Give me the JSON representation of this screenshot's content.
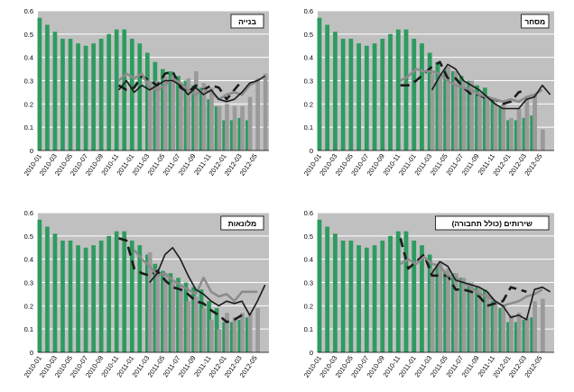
{
  "months": [
    "2010-01",
    "2010-02",
    "2010-03",
    "2010-04",
    "2010-05",
    "2010-06",
    "2010-07",
    "2010-08",
    "2010-09",
    "2010-10",
    "2010-11",
    "2010-12",
    "2011-01",
    "2011-02",
    "2011-03",
    "2011-04",
    "2011-05",
    "2011-06",
    "2011-07",
    "2011-08",
    "2011-09",
    "2011-10",
    "2011-11",
    "2011-12",
    "2012-01",
    "2012-02",
    "2012-03",
    "2012-04",
    "2012-05",
    "2012-06"
  ],
  "colors": {
    "green_bar": "#2e9b5f",
    "gray_bar": "#9a9a9a",
    "plot_bg": "#c0c0c0",
    "dark_line": "#1a1a1a",
    "gray_line": "#8c8c8c"
  },
  "chart_data": [
    {
      "type": "bar",
      "title": "בנייה",
      "position": "top-left",
      "x": [
        "2010-01",
        "2010-02",
        "2010-03",
        "2010-04",
        "2010-05",
        "2010-06",
        "2010-07",
        "2010-08",
        "2010-09",
        "2010-10",
        "2010-11",
        "2010-12",
        "2011-01",
        "2011-02",
        "2011-03",
        "2011-04",
        "2011-05",
        "2011-06",
        "2011-07",
        "2011-08",
        "2011-09",
        "2011-10",
        "2011-11",
        "2011-12",
        "2012-01",
        "2012-02",
        "2012-03",
        "2012-04",
        "2012-05",
        "2012-06"
      ],
      "x_tick_labels": [
        "2010-01",
        "2010-03",
        "2010-05",
        "2010-07",
        "2010-09",
        "2010-11",
        "2011-01",
        "2011-03",
        "2011-05",
        "2011-07",
        "2011-09",
        "2011-11",
        "2012-01",
        "2012-03",
        "2012-05"
      ],
      "ylim": [
        0,
        0.6
      ],
      "y_ticks": [
        0,
        0.1,
        0.2,
        0.3,
        0.4,
        0.5,
        0.6
      ],
      "grid": true,
      "series": [
        {
          "kind": "bar",
          "color": "green",
          "values": [
            0.57,
            0.54,
            0.51,
            0.48,
            0.48,
            0.46,
            0.45,
            0.46,
            0.48,
            0.5,
            0.52,
            0.52,
            0.48,
            0.46,
            0.42,
            0.38,
            0.35,
            0.34,
            0.32,
            0.3,
            0.28,
            0.27,
            0.22,
            0.19,
            0.13,
            0.13,
            0.14,
            0.13,
            null,
            null
          ]
        },
        {
          "kind": "bar",
          "color": "gray",
          "values": [
            null,
            null,
            null,
            null,
            null,
            null,
            null,
            null,
            null,
            null,
            null,
            null,
            null,
            null,
            0.3,
            0.3,
            0.32,
            0.32,
            0.29,
            0.31,
            0.34,
            0.29,
            0.27,
            0.19,
            0.2,
            0.19,
            0.19,
            0.23,
            0.31,
            0.33
          ]
        },
        {
          "kind": "line",
          "style": "dashed",
          "color": "dark",
          "values": [
            null,
            null,
            null,
            null,
            null,
            null,
            null,
            null,
            null,
            null,
            0.28,
            0.26,
            0.27,
            0.32,
            0.3,
            0.28,
            0.33,
            0.34,
            0.27,
            0.25,
            0.28,
            0.26,
            0.28,
            0.27,
            0.22,
            0.26,
            0.3,
            null,
            null,
            null
          ]
        },
        {
          "kind": "line",
          "style": "solid",
          "color": "gray",
          "values": [
            null,
            null,
            null,
            null,
            null,
            null,
            null,
            null,
            null,
            null,
            0.3,
            0.33,
            0.31,
            0.33,
            0.27,
            0.26,
            0.28,
            0.31,
            0.29,
            0.26,
            0.24,
            0.26,
            0.25,
            0.22,
            0.24,
            0.25,
            0.24,
            0.28,
            0.3,
            null
          ]
        },
        {
          "kind": "line",
          "style": "solid",
          "color": "dark",
          "values": [
            null,
            null,
            null,
            null,
            null,
            null,
            null,
            null,
            null,
            null,
            0.26,
            0.3,
            0.25,
            0.28,
            0.26,
            0.28,
            0.3,
            0.3,
            0.28,
            0.24,
            0.27,
            0.24,
            0.26,
            0.22,
            0.21,
            0.22,
            0.25,
            0.29,
            0.3,
            0.32
          ]
        }
      ]
    },
    {
      "type": "bar",
      "title": "מסחר",
      "position": "top-right",
      "x": [
        "2010-01",
        "2010-02",
        "2010-03",
        "2010-04",
        "2010-05",
        "2010-06",
        "2010-07",
        "2010-08",
        "2010-09",
        "2010-10",
        "2010-11",
        "2010-12",
        "2011-01",
        "2011-02",
        "2011-03",
        "2011-04",
        "2011-05",
        "2011-06",
        "2011-07",
        "2011-08",
        "2011-09",
        "2011-10",
        "2011-11",
        "2011-12",
        "2012-01",
        "2012-02",
        "2012-03",
        "2012-04",
        "2012-05",
        "2012-06"
      ],
      "x_tick_labels": [
        "2010-01",
        "2010-03",
        "2010-05",
        "2010-07",
        "2010-09",
        "2010-11",
        "2011-01",
        "2011-03",
        "2011-05",
        "2011-07",
        "2011-09",
        "2011-11",
        "2012-01",
        "2012-03",
        "2012-05"
      ],
      "ylim": [
        0,
        0.6
      ],
      "y_ticks": [
        0,
        0.1,
        0.2,
        0.3,
        0.4,
        0.5,
        0.6
      ],
      "grid": true,
      "series": [
        {
          "kind": "bar",
          "color": "green",
          "values": [
            0.57,
            0.54,
            0.51,
            0.48,
            0.48,
            0.46,
            0.45,
            0.46,
            0.48,
            0.5,
            0.52,
            0.52,
            0.48,
            0.46,
            0.42,
            0.38,
            0.35,
            0.34,
            0.32,
            0.3,
            0.28,
            0.27,
            0.22,
            0.19,
            0.13,
            0.13,
            0.14,
            0.15,
            null,
            null
          ]
        },
        {
          "kind": "bar",
          "color": "gray",
          "values": [
            null,
            null,
            null,
            null,
            null,
            null,
            null,
            null,
            null,
            null,
            null,
            null,
            null,
            null,
            0.33,
            0.33,
            0.36,
            0.34,
            0.3,
            0.3,
            0.25,
            0.23,
            0.2,
            0.2,
            0.14,
            0.18,
            0.22,
            0.24,
            0.09,
            null
          ]
        },
        {
          "kind": "line",
          "style": "dashed",
          "color": "dark",
          "values": [
            null,
            null,
            null,
            null,
            null,
            null,
            null,
            null,
            null,
            null,
            0.28,
            0.28,
            0.3,
            0.33,
            0.36,
            0.38,
            0.31,
            0.31,
            0.27,
            0.24,
            0.24,
            0.22,
            0.22,
            0.2,
            0.21,
            0.25,
            0.26,
            null,
            null,
            null
          ]
        },
        {
          "kind": "line",
          "style": "solid",
          "color": "gray",
          "values": [
            null,
            null,
            null,
            null,
            null,
            null,
            null,
            null,
            null,
            null,
            0.3,
            0.32,
            0.35,
            0.34,
            0.34,
            0.33,
            0.3,
            0.28,
            0.27,
            0.26,
            0.24,
            0.23,
            0.22,
            0.21,
            0.22,
            0.21,
            0.23,
            0.24,
            0.26,
            null
          ]
        },
        {
          "kind": "line",
          "style": "solid",
          "color": "dark",
          "values": [
            null,
            null,
            null,
            null,
            null,
            null,
            null,
            null,
            null,
            null,
            null,
            null,
            null,
            null,
            0.26,
            0.32,
            0.37,
            0.35,
            0.3,
            0.28,
            0.26,
            0.23,
            0.2,
            0.18,
            0.18,
            0.18,
            0.22,
            0.23,
            0.28,
            0.24
          ]
        }
      ]
    },
    {
      "type": "bar",
      "title": "מלונאות",
      "position": "bottom-left",
      "x": [
        "2010-01",
        "2010-02",
        "2010-03",
        "2010-04",
        "2010-05",
        "2010-06",
        "2010-07",
        "2010-08",
        "2010-09",
        "2010-10",
        "2010-11",
        "2010-12",
        "2011-01",
        "2011-02",
        "2011-03",
        "2011-04",
        "2011-05",
        "2011-06",
        "2011-07",
        "2011-08",
        "2011-09",
        "2011-10",
        "2011-11",
        "2011-12",
        "2012-01",
        "2012-02",
        "2012-03",
        "2012-04",
        "2012-05",
        "2012-06"
      ],
      "x_tick_labels": [
        "2010-01",
        "2010-03",
        "2010-05",
        "2010-07",
        "2010-09",
        "2010-11",
        "2011-01",
        "2011-03",
        "2011-05",
        "2011-07",
        "2011-09",
        "2011-11",
        "2012-01",
        "2012-03",
        "2012-05"
      ],
      "ylim": [
        0,
        0.6
      ],
      "y_ticks": [
        0,
        0.1,
        0.2,
        0.3,
        0.4,
        0.5,
        0.6
      ],
      "grid": true,
      "series": [
        {
          "kind": "bar",
          "color": "green",
          "values": [
            0.57,
            0.54,
            0.51,
            0.48,
            0.48,
            0.46,
            0.45,
            0.46,
            0.48,
            0.5,
            0.52,
            0.52,
            0.48,
            0.46,
            0.42,
            0.38,
            0.35,
            0.34,
            0.32,
            0.3,
            0.28,
            0.27,
            0.22,
            0.19,
            0.13,
            0.13,
            0.14,
            0.15,
            null,
            null
          ]
        },
        {
          "kind": "bar",
          "color": "gray",
          "values": [
            null,
            null,
            null,
            null,
            null,
            null,
            null,
            null,
            null,
            null,
            null,
            null,
            null,
            null,
            0.43,
            0.36,
            0.33,
            0.3,
            0.28,
            0.22,
            0.24,
            0.19,
            0.14,
            0.1,
            0.17,
            0.15,
            0.17,
            0.17,
            0.19,
            null
          ]
        },
        {
          "kind": "line",
          "style": "dashed",
          "color": "dark",
          "values": [
            null,
            null,
            null,
            null,
            null,
            null,
            null,
            null,
            null,
            null,
            0.49,
            0.48,
            0.36,
            0.34,
            0.33,
            0.35,
            0.31,
            0.28,
            0.27,
            0.25,
            0.22,
            0.21,
            0.18,
            0.16,
            0.13,
            0.14,
            0.16,
            null,
            null,
            null
          ]
        },
        {
          "kind": "line",
          "style": "solid",
          "color": "gray",
          "values": [
            null,
            null,
            null,
            null,
            null,
            null,
            null,
            null,
            null,
            null,
            null,
            null,
            0.44,
            0.4,
            0.37,
            0.33,
            0.34,
            0.31,
            0.29,
            0.27,
            0.25,
            0.32,
            0.26,
            0.24,
            0.25,
            0.22,
            0.26,
            0.26,
            0.26,
            null
          ]
        },
        {
          "kind": "line",
          "style": "solid",
          "color": "dark",
          "values": [
            null,
            null,
            null,
            null,
            null,
            null,
            null,
            null,
            null,
            null,
            null,
            null,
            null,
            null,
            0.3,
            0.34,
            0.42,
            0.45,
            0.4,
            0.33,
            0.27,
            0.25,
            0.22,
            0.2,
            0.22,
            0.21,
            0.22,
            0.16,
            0.22,
            0.29
          ]
        }
      ]
    },
    {
      "type": "bar",
      "title": "שירותים (כולל תחבורה)",
      "position": "bottom-right",
      "x": [
        "2010-01",
        "2010-02",
        "2010-03",
        "2010-04",
        "2010-05",
        "2010-06",
        "2010-07",
        "2010-08",
        "2010-09",
        "2010-10",
        "2010-11",
        "2010-12",
        "2011-01",
        "2011-02",
        "2011-03",
        "2011-04",
        "2011-05",
        "2011-06",
        "2011-07",
        "2011-08",
        "2011-09",
        "2011-10",
        "2011-11",
        "2011-12",
        "2012-01",
        "2012-02",
        "2012-03",
        "2012-04",
        "2012-05",
        "2012-06"
      ],
      "x_tick_labels": [
        "2010-01",
        "2010-03",
        "2010-05",
        "2010-07",
        "2010-09",
        "2010-11",
        "2011-01",
        "2011-03",
        "2011-05",
        "2011-07",
        "2011-09",
        "2011-11",
        "2012-01",
        "2012-03",
        "2012-05"
      ],
      "ylim": [
        0,
        0.6
      ],
      "y_ticks": [
        0,
        0.1,
        0.2,
        0.3,
        0.4,
        0.5,
        0.6
      ],
      "grid": true,
      "series": [
        {
          "kind": "bar",
          "color": "green",
          "values": [
            0.57,
            0.54,
            0.51,
            0.48,
            0.48,
            0.46,
            0.45,
            0.46,
            0.48,
            0.5,
            0.52,
            0.52,
            0.48,
            0.46,
            0.42,
            0.38,
            0.35,
            0.34,
            0.32,
            0.3,
            0.28,
            0.27,
            0.22,
            0.19,
            0.13,
            0.13,
            0.14,
            0.15,
            null,
            null
          ]
        },
        {
          "kind": "bar",
          "color": "gray",
          "values": [
            null,
            null,
            null,
            null,
            null,
            null,
            null,
            null,
            null,
            null,
            null,
            null,
            null,
            null,
            0.36,
            0.39,
            0.36,
            0.34,
            0.32,
            0.3,
            0.28,
            0.26,
            0.21,
            0.2,
            0.16,
            0.17,
            0.15,
            0.22,
            0.23,
            null
          ]
        },
        {
          "kind": "line",
          "style": "dashed",
          "color": "dark",
          "values": [
            null,
            null,
            null,
            null,
            null,
            null,
            null,
            null,
            null,
            null,
            0.49,
            0.36,
            0.39,
            0.42,
            0.33,
            0.33,
            0.33,
            0.27,
            0.27,
            0.26,
            0.24,
            0.2,
            0.21,
            0.22,
            0.28,
            0.27,
            0.26,
            null,
            null,
            null
          ]
        },
        {
          "kind": "line",
          "style": "solid",
          "color": "gray",
          "values": [
            null,
            null,
            null,
            null,
            null,
            null,
            null,
            null,
            null,
            null,
            0.38,
            0.4,
            0.38,
            0.41,
            0.38,
            0.37,
            0.33,
            0.32,
            0.3,
            0.28,
            0.25,
            0.24,
            0.22,
            0.2,
            0.21,
            0.22,
            0.24,
            0.25,
            0.27,
            null
          ]
        },
        {
          "kind": "line",
          "style": "solid",
          "color": "dark",
          "values": [
            null,
            null,
            null,
            null,
            null,
            null,
            null,
            null,
            null,
            null,
            null,
            null,
            null,
            null,
            0.34,
            0.39,
            0.37,
            0.31,
            0.3,
            0.29,
            0.28,
            0.26,
            0.22,
            0.2,
            0.15,
            0.16,
            0.14,
            0.27,
            0.28,
            0.26
          ]
        }
      ]
    }
  ]
}
